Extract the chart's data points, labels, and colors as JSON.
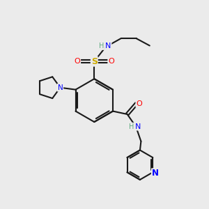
{
  "background_color": "#ebebeb",
  "bond_color": "#1a1a1a",
  "colors": {
    "N": "#0000ff",
    "O": "#ff0000",
    "S": "#ccaa00",
    "H": "#5faa80",
    "C": "#1a1a1a"
  },
  "figsize": [
    3.0,
    3.0
  ],
  "dpi": 100
}
